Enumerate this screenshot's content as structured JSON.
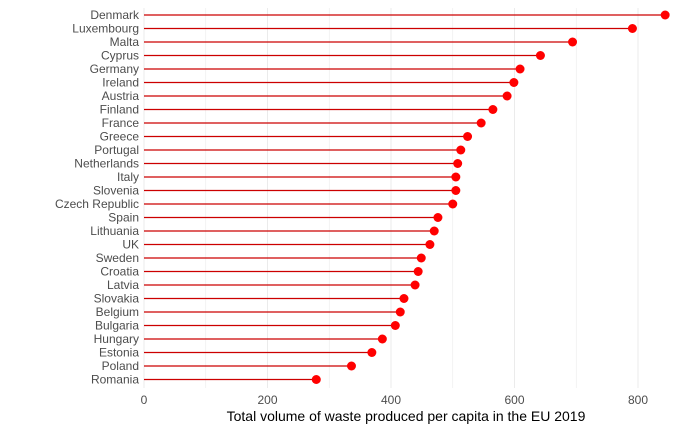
{
  "chart_data": {
    "type": "lollipop",
    "orientation": "horizontal",
    "title": "",
    "xlabel": "Total volume of waste produced per capita in the EU 2019",
    "ylabel": "",
    "xlim": [
      0,
      850
    ],
    "xticks": [
      0,
      200,
      400,
      600,
      800
    ],
    "grid": "vertical",
    "legend": "none",
    "colors": {
      "mark": "#ff0000",
      "stem": "#cc0000",
      "grid": "#ebebeb"
    },
    "categories": [
      "Denmark",
      "Luxembourg",
      "Malta",
      "Cyprus",
      "Germany",
      "Ireland",
      "Austria",
      "Finland",
      "France",
      "Greece",
      "Portugal",
      "Netherlands",
      "Italy",
      "Slovenia",
      "Czech Republic",
      "Spain",
      "Lithuania",
      "UK",
      "Sweden",
      "Croatia",
      "Latvia",
      "Slovakia",
      "Belgium",
      "Bulgaria",
      "Hungary",
      "Estonia",
      "Poland",
      "Romania"
    ],
    "values": [
      844,
      791,
      694,
      642,
      609,
      599,
      588,
      565,
      546,
      524,
      513,
      508,
      505,
      505,
      500,
      476,
      470,
      463,
      449,
      444,
      439,
      421,
      415,
      407,
      386,
      369,
      336,
      279
    ]
  }
}
